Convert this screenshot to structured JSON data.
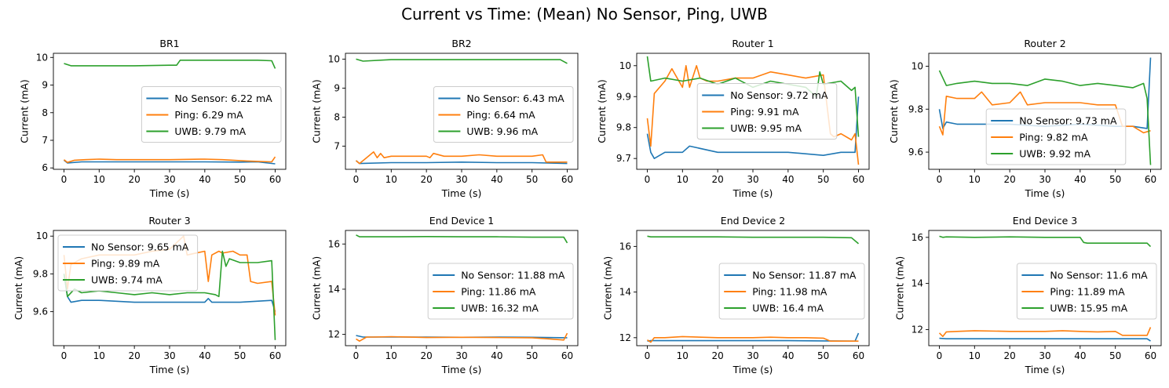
{
  "figure": {
    "title": "Current vs Time: (Mean) No Sensor, Ping, UWB",
    "series_colors": {
      "No Sensor": "#1f77b4",
      "Ping": "#ff7f0e",
      "UWB": "#2ca02c"
    }
  },
  "chart_data": [
    {
      "type": "line",
      "title": "BR1",
      "xlabel": "Time (s)",
      "ylabel": "Current (mA)",
      "xlim": [
        -3,
        63
      ],
      "ylim": [
        5.95,
        10.15
      ],
      "xticks": [
        0,
        10,
        20,
        30,
        40,
        50,
        60
      ],
      "yticks": [
        6,
        7,
        8,
        9,
        10
      ],
      "legend": "center-right",
      "grid": false,
      "series": [
        {
          "name": "No Sensor: 6.22 mA",
          "color": "#1f77b4",
          "x": [
            0,
            1,
            5,
            10,
            20,
            30,
            40,
            50,
            55,
            60
          ],
          "y": [
            6.28,
            6.18,
            6.22,
            6.22,
            6.22,
            6.22,
            6.22,
            6.21,
            6.22,
            6.15
          ]
        },
        {
          "name": "Ping: 6.29 mA",
          "color": "#ff7f0e",
          "x": [
            0,
            1,
            3,
            6,
            10,
            15,
            20,
            30,
            40,
            45,
            52,
            59,
            60
          ],
          "y": [
            6.3,
            6.2,
            6.28,
            6.3,
            6.32,
            6.3,
            6.3,
            6.3,
            6.32,
            6.3,
            6.25,
            6.22,
            6.4
          ]
        },
        {
          "name": "UWB: 9.79 mA",
          "color": "#2ca02c",
          "x": [
            0,
            2,
            5,
            10,
            20,
            30,
            32,
            33,
            35,
            40,
            50,
            55,
            59,
            60
          ],
          "y": [
            9.78,
            9.7,
            9.7,
            9.7,
            9.7,
            9.72,
            9.72,
            9.9,
            9.9,
            9.9,
            9.9,
            9.9,
            9.88,
            9.6
          ]
        }
      ]
    },
    {
      "type": "line",
      "title": "BR2",
      "xlabel": "Time (s)",
      "ylabel": "Current (mA)",
      "xlim": [
        -3,
        63
      ],
      "ylim": [
        6.2,
        10.2
      ],
      "xticks": [
        0,
        10,
        20,
        30,
        40,
        50,
        60
      ],
      "yticks": [
        7,
        8,
        9,
        10
      ],
      "legend": "center-right",
      "grid": false,
      "series": [
        {
          "name": "No Sensor: 6.43 mA",
          "color": "#1f77b4",
          "x": [
            0,
            1,
            10,
            20,
            30,
            40,
            50,
            60
          ],
          "y": [
            6.5,
            6.4,
            6.43,
            6.43,
            6.45,
            6.43,
            6.43,
            6.4
          ]
        },
        {
          "name": "Ping: 6.64 mA",
          "color": "#ff7f0e",
          "x": [
            0,
            1,
            3,
            5,
            6,
            7,
            8,
            10,
            15,
            20,
            21,
            22,
            25,
            30,
            35,
            40,
            45,
            50,
            53,
            54,
            60
          ],
          "y": [
            6.5,
            6.4,
            6.6,
            6.8,
            6.6,
            6.75,
            6.6,
            6.65,
            6.65,
            6.65,
            6.6,
            6.75,
            6.65,
            6.65,
            6.7,
            6.65,
            6.65,
            6.65,
            6.7,
            6.45,
            6.45
          ]
        },
        {
          "name": "UWB: 9.96 mA",
          "color": "#2ca02c",
          "x": [
            0,
            2,
            10,
            20,
            30,
            40,
            50,
            58,
            60
          ],
          "y": [
            10.0,
            9.93,
            9.98,
            9.98,
            9.98,
            9.98,
            9.98,
            9.98,
            9.85
          ]
        }
      ]
    },
    {
      "type": "line",
      "title": "Router 1",
      "xlabel": "Time (s)",
      "ylabel": "Current (mA)",
      "xlim": [
        -3,
        63
      ],
      "ylim": [
        9.665,
        10.04
      ],
      "xticks": [
        0,
        10,
        20,
        30,
        40,
        50,
        60
      ],
      "yticks": [
        9.7,
        9.8,
        9.9,
        10.0
      ],
      "legend": "center",
      "grid": false,
      "series": [
        {
          "name": "No Sensor: 9.72 mA",
          "color": "#1f77b4",
          "x": [
            0,
            1,
            2,
            5,
            10,
            12,
            20,
            30,
            40,
            50,
            55,
            59,
            60
          ],
          "y": [
            9.78,
            9.72,
            9.7,
            9.72,
            9.72,
            9.74,
            9.72,
            9.72,
            9.72,
            9.71,
            9.72,
            9.72,
            9.9
          ]
        },
        {
          "name": "Ping: 9.91 mA",
          "color": "#ff7f0e",
          "x": [
            0,
            1,
            2,
            5,
            7,
            10,
            11,
            12,
            14,
            15,
            17,
            20,
            25,
            30,
            35,
            40,
            45,
            50,
            52,
            53,
            55,
            58,
            59,
            60
          ],
          "y": [
            9.83,
            9.74,
            9.91,
            9.95,
            9.99,
            9.93,
            10.0,
            9.93,
            10.0,
            9.96,
            9.95,
            9.95,
            9.96,
            9.96,
            9.98,
            9.97,
            9.96,
            9.97,
            9.78,
            9.77,
            9.78,
            9.76,
            9.78,
            9.68
          ]
        },
        {
          "name": "UWB: 9.95 mA",
          "color": "#2ca02c",
          "x": [
            0,
            1,
            5,
            10,
            15,
            20,
            25,
            30,
            35,
            40,
            45,
            48,
            49,
            50,
            55,
            58,
            59,
            60
          ],
          "y": [
            10.03,
            9.95,
            9.96,
            9.95,
            9.96,
            9.94,
            9.96,
            9.93,
            9.95,
            9.94,
            9.93,
            9.9,
            9.98,
            9.94,
            9.95,
            9.92,
            9.93,
            9.77
          ]
        }
      ]
    },
    {
      "type": "line",
      "title": "Router 2",
      "xlabel": "Time (s)",
      "ylabel": "Current (mA)",
      "xlim": [
        -3,
        63
      ],
      "ylim": [
        9.52,
        10.06
      ],
      "xticks": [
        0,
        10,
        20,
        30,
        40,
        50,
        60
      ],
      "yticks": [
        9.6,
        9.8,
        10.0
      ],
      "legend": "bottom-center",
      "grid": false,
      "series": [
        {
          "name": "No Sensor: 9.73 mA",
          "color": "#1f77b4",
          "x": [
            0,
            1,
            2,
            5,
            10,
            20,
            30,
            40,
            50,
            55,
            59,
            60
          ],
          "y": [
            9.8,
            9.71,
            9.74,
            9.73,
            9.73,
            9.73,
            9.72,
            9.73,
            9.72,
            9.72,
            9.71,
            10.04
          ]
        },
        {
          "name": "Ping: 9.82 mA",
          "color": "#ff7f0e",
          "x": [
            0,
            1,
            2,
            5,
            10,
            12,
            15,
            20,
            23,
            25,
            30,
            35,
            40,
            45,
            50,
            52,
            55,
            58,
            60
          ],
          "y": [
            9.72,
            9.68,
            9.86,
            9.85,
            9.85,
            9.88,
            9.82,
            9.83,
            9.88,
            9.82,
            9.83,
            9.83,
            9.83,
            9.82,
            9.82,
            9.72,
            9.72,
            9.69,
            9.7
          ]
        },
        {
          "name": "UWB: 9.92 mA",
          "color": "#2ca02c",
          "x": [
            0,
            2,
            5,
            10,
            15,
            20,
            25,
            30,
            35,
            40,
            45,
            50,
            55,
            58,
            59,
            60
          ],
          "y": [
            9.98,
            9.91,
            9.92,
            9.93,
            9.92,
            9.92,
            9.91,
            9.94,
            9.93,
            9.91,
            9.92,
            9.91,
            9.9,
            9.92,
            9.85,
            9.54
          ]
        }
      ]
    },
    {
      "type": "line",
      "title": "Router 3",
      "xlabel": "Time (s)",
      "ylabel": "Current (mA)",
      "xlim": [
        -3,
        63
      ],
      "ylim": [
        9.42,
        10.03
      ],
      "xticks": [
        0,
        10,
        20,
        30,
        40,
        50,
        60
      ],
      "yticks": [
        9.6,
        9.8,
        10.0
      ],
      "legend": "top-left",
      "grid": false,
      "series": [
        {
          "name": "No Sensor: 9.65 mA",
          "color": "#1f77b4",
          "x": [
            0,
            1,
            2,
            5,
            10,
            20,
            30,
            40,
            41,
            42,
            50,
            59,
            60
          ],
          "y": [
            9.8,
            9.68,
            9.65,
            9.66,
            9.66,
            9.65,
            9.65,
            9.65,
            9.67,
            9.65,
            9.65,
            9.66,
            9.6
          ]
        },
        {
          "name": "Ping: 9.89 mA",
          "color": "#ff7f0e",
          "x": [
            0,
            1,
            2,
            5,
            10,
            15,
            20,
            25,
            30,
            34,
            35,
            40,
            41,
            42,
            44,
            45,
            48,
            50,
            52,
            53,
            55,
            59,
            60
          ],
          "y": [
            9.9,
            9.72,
            9.85,
            9.88,
            9.9,
            9.9,
            9.9,
            9.92,
            9.93,
            10.0,
            9.9,
            9.92,
            9.76,
            9.9,
            9.92,
            9.91,
            9.92,
            9.9,
            9.9,
            9.76,
            9.75,
            9.76,
            9.58
          ]
        },
        {
          "name": "UWB: 9.74 mA",
          "color": "#2ca02c",
          "x": [
            0,
            1,
            3,
            5,
            10,
            15,
            20,
            25,
            30,
            35,
            40,
            43,
            44,
            45,
            46,
            47,
            50,
            55,
            59,
            60
          ],
          "y": [
            9.8,
            9.68,
            9.72,
            9.7,
            9.71,
            9.7,
            9.69,
            9.7,
            9.69,
            9.7,
            9.7,
            9.69,
            9.68,
            9.92,
            9.84,
            9.88,
            9.86,
            9.86,
            9.87,
            9.45
          ]
        }
      ]
    },
    {
      "type": "line",
      "title": "End Device 1",
      "xlabel": "Time (s)",
      "ylabel": "Current (mA)",
      "xlim": [
        -3,
        63
      ],
      "ylim": [
        11.5,
        16.6
      ],
      "xticks": [
        0,
        10,
        20,
        30,
        40,
        50,
        60
      ],
      "yticks": [
        12,
        14,
        16
      ],
      "legend": "center-right",
      "grid": false,
      "series": [
        {
          "name": "No Sensor: 11.88 mA",
          "color": "#1f77b4",
          "x": [
            0,
            2,
            10,
            20,
            30,
            40,
            50,
            60
          ],
          "y": [
            11.95,
            11.88,
            11.88,
            11.88,
            11.87,
            11.88,
            11.87,
            11.85
          ]
        },
        {
          "name": "Ping: 11.86 mA",
          "color": "#ff7f0e",
          "x": [
            0,
            1,
            3,
            5,
            10,
            20,
            30,
            40,
            50,
            55,
            59,
            60
          ],
          "y": [
            11.8,
            11.7,
            11.88,
            11.88,
            11.9,
            11.86,
            11.87,
            11.86,
            11.85,
            11.8,
            11.75,
            12.05
          ]
        },
        {
          "name": "UWB: 16.32 mA",
          "color": "#2ca02c",
          "x": [
            0,
            1,
            10,
            20,
            30,
            40,
            50,
            59,
            60
          ],
          "y": [
            16.4,
            16.32,
            16.32,
            16.33,
            16.32,
            16.32,
            16.3,
            16.3,
            16.05
          ]
        }
      ]
    },
    {
      "type": "line",
      "title": "End Device 2",
      "xlabel": "Time (s)",
      "ylabel": "Current (mA)",
      "xlim": [
        -3,
        63
      ],
      "ylim": [
        11.65,
        16.7
      ],
      "xticks": [
        0,
        10,
        20,
        30,
        40,
        50,
        60
      ],
      "yticks": [
        12,
        14,
        16
      ],
      "legend": "center-right",
      "grid": false,
      "series": [
        {
          "name": "No Sensor: 11.87 mA",
          "color": "#1f77b4",
          "x": [
            0,
            1,
            10,
            20,
            30,
            40,
            50,
            59,
            60
          ],
          "y": [
            11.85,
            11.87,
            11.87,
            11.87,
            11.87,
            11.87,
            11.86,
            11.85,
            12.2
          ]
        },
        {
          "name": "Ping: 11.98 mA",
          "color": "#ff7f0e",
          "x": [
            0,
            1,
            2,
            5,
            10,
            20,
            30,
            35,
            40,
            45,
            50,
            52,
            55,
            60
          ],
          "y": [
            11.9,
            11.8,
            12.0,
            12.0,
            12.05,
            12.0,
            12.0,
            12.02,
            12.0,
            12.0,
            11.98,
            11.85,
            11.85,
            11.85
          ]
        },
        {
          "name": "UWB: 16.4 mA",
          "color": "#2ca02c",
          "x": [
            0,
            1,
            10,
            20,
            30,
            40,
            50,
            58,
            60
          ],
          "y": [
            16.45,
            16.42,
            16.42,
            16.42,
            16.4,
            16.4,
            16.4,
            16.38,
            16.12
          ]
        }
      ]
    },
    {
      "type": "line",
      "title": "End Device 3",
      "xlabel": "Time (s)",
      "ylabel": "Current (mA)",
      "xlim": [
        -3,
        63
      ],
      "ylim": [
        11.3,
        16.3
      ],
      "xticks": [
        0,
        10,
        20,
        30,
        40,
        50,
        60
      ],
      "yticks": [
        12,
        14,
        16
      ],
      "legend": "center-right",
      "grid": false,
      "series": [
        {
          "name": "No Sensor: 11.6 mA",
          "color": "#1f77b4",
          "x": [
            0,
            2,
            10,
            20,
            30,
            40,
            50,
            59,
            60
          ],
          "y": [
            11.62,
            11.6,
            11.6,
            11.6,
            11.6,
            11.6,
            11.6,
            11.6,
            11.5
          ]
        },
        {
          "name": "Ping: 11.89 mA",
          "color": "#ff7f0e",
          "x": [
            0,
            1,
            2,
            5,
            10,
            20,
            30,
            35,
            40,
            45,
            50,
            52,
            55,
            59,
            60
          ],
          "y": [
            11.85,
            11.7,
            11.9,
            11.92,
            11.95,
            11.92,
            11.92,
            11.95,
            11.92,
            11.9,
            11.92,
            11.75,
            11.75,
            11.75,
            12.1
          ]
        },
        {
          "name": "UWB: 15.95 mA",
          "color": "#2ca02c",
          "x": [
            0,
            1,
            2,
            10,
            20,
            30,
            40,
            41,
            42,
            50,
            59,
            60
          ],
          "y": [
            16.05,
            16.0,
            16.02,
            16.0,
            16.02,
            16.0,
            16.0,
            15.78,
            15.75,
            15.75,
            15.75,
            15.6
          ]
        }
      ]
    }
  ]
}
